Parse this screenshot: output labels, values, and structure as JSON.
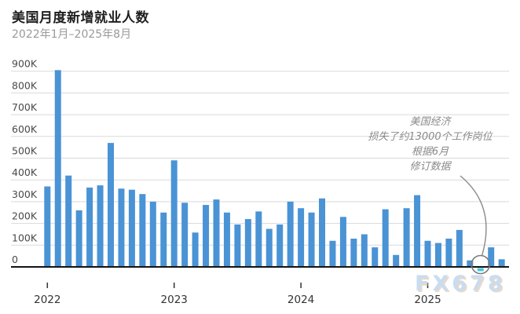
{
  "header": {
    "title": "美国月度新增就业人数",
    "subtitle": "2022年1月–2025年8月"
  },
  "annotation": {
    "lines": [
      "美国经济",
      "损失了约13000个工作岗位",
      "根据6月",
      "修订数据"
    ]
  },
  "watermark": {
    "text": "FX678"
  },
  "colors": {
    "bar": "#4a93d5",
    "highlight_bar": "#4cc8d6",
    "grid": "#d9d9d9",
    "axis": "#141414",
    "tick": "#333333",
    "y_label": "#4a4a4a",
    "x_label": "#333333",
    "annotation_text": "#8a8a8a",
    "circle": "#7a7a7a"
  },
  "chart_data": {
    "type": "bar",
    "title": "美国月度新增就业人数",
    "subtitle": "2022年1月–2025年8月",
    "unit": "thousands of jobs",
    "grid": true,
    "legend": false,
    "ylim": [
      -50,
      950
    ],
    "y_ticks": [
      "0",
      "100K",
      "200K",
      "300K",
      "400K",
      "500K",
      "600K",
      "700K",
      "800K",
      "900K"
    ],
    "x_tick_labels": [
      "2022",
      "2023",
      "2024",
      "2025"
    ],
    "x": [
      "2022-01",
      "2022-02",
      "2022-03",
      "2022-04",
      "2022-05",
      "2022-06",
      "2022-07",
      "2022-08",
      "2022-09",
      "2022-10",
      "2022-11",
      "2022-12",
      "2023-01",
      "2023-02",
      "2023-03",
      "2023-04",
      "2023-05",
      "2023-06",
      "2023-07",
      "2023-08",
      "2023-09",
      "2023-10",
      "2023-11",
      "2023-12",
      "2024-01",
      "2024-02",
      "2024-03",
      "2024-04",
      "2024-05",
      "2024-06",
      "2024-07",
      "2024-08",
      "2024-09",
      "2024-10",
      "2024-11",
      "2024-12",
      "2025-01",
      "2025-02",
      "2025-03",
      "2025-04",
      "2025-05",
      "2025-06",
      "2025-07",
      "2025-08"
    ],
    "values": [
      370,
      905,
      420,
      260,
      365,
      375,
      570,
      360,
      355,
      335,
      300,
      250,
      490,
      295,
      158,
      285,
      310,
      250,
      195,
      220,
      255,
      175,
      195,
      300,
      270,
      250,
      315,
      120,
      230,
      130,
      150,
      90,
      265,
      55,
      270,
      330,
      120,
      110,
      130,
      170,
      30,
      -13,
      90,
      35
    ],
    "highlight_index": 41,
    "highlight_value": -13,
    "annotation_text": "美国经济 损失了约13000个工作岗位 根据6月 修订数据"
  }
}
